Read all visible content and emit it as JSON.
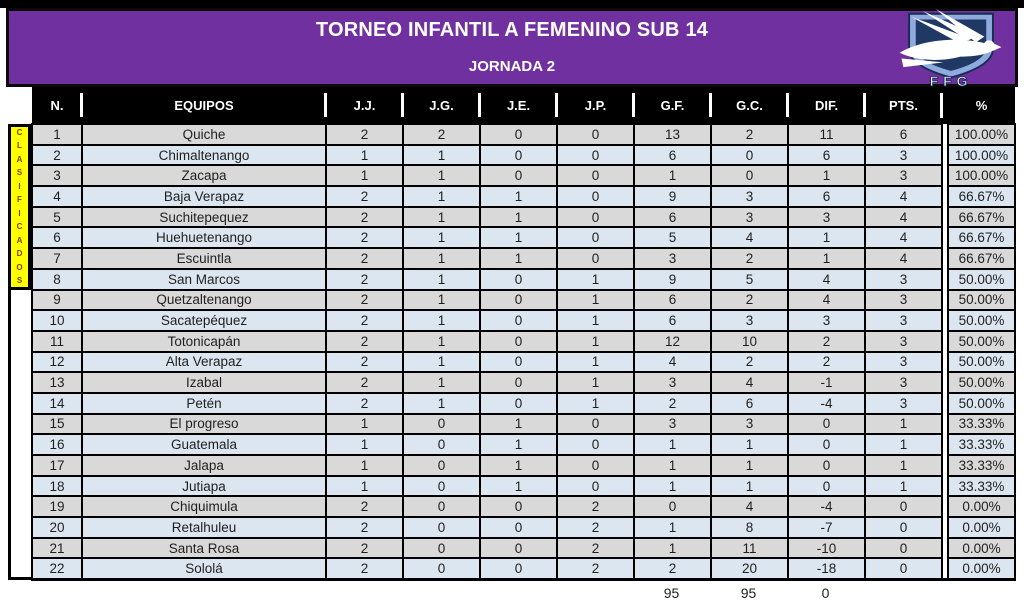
{
  "banner": {
    "title": "TORNEO INFANTIL A FEMENINO SUB 14",
    "subtitle": "JORNADA 2",
    "logo_text": "FFG"
  },
  "clasificados": {
    "text": "CLASIFICADOS",
    "rows_covered": 8
  },
  "table": {
    "columns": [
      "N.",
      "EQUIPOS",
      "J.J.",
      "J.G.",
      "J.E.",
      "J.P.",
      "G.F.",
      "G.C.",
      "DIF.",
      "PTS.",
      "%"
    ],
    "rows": [
      [
        "1",
        "Quiche",
        "2",
        "2",
        "0",
        "0",
        "13",
        "2",
        "11",
        "6",
        "100.00%"
      ],
      [
        "2",
        "Chimaltenango",
        "1",
        "1",
        "0",
        "0",
        "6",
        "0",
        "6",
        "3",
        "100.00%"
      ],
      [
        "3",
        "Zacapa",
        "1",
        "1",
        "0",
        "0",
        "1",
        "0",
        "1",
        "3",
        "100.00%"
      ],
      [
        "4",
        "Baja Verapaz",
        "2",
        "1",
        "1",
        "0",
        "9",
        "3",
        "6",
        "4",
        "66.67%"
      ],
      [
        "5",
        "Suchitepequez",
        "2",
        "1",
        "1",
        "0",
        "6",
        "3",
        "3",
        "4",
        "66.67%"
      ],
      [
        "6",
        "Huehuetenango",
        "2",
        "1",
        "1",
        "0",
        "5",
        "4",
        "1",
        "4",
        "66.67%"
      ],
      [
        "7",
        "Escuintla",
        "2",
        "1",
        "1",
        "0",
        "3",
        "2",
        "1",
        "4",
        "66.67%"
      ],
      [
        "8",
        "San Marcos",
        "2",
        "1",
        "0",
        "1",
        "9",
        "5",
        "4",
        "3",
        "50.00%"
      ],
      [
        "9",
        "Quetzaltenango",
        "2",
        "1",
        "0",
        "1",
        "6",
        "2",
        "4",
        "3",
        "50.00%"
      ],
      [
        "10",
        "Sacatepéquez",
        "2",
        "1",
        "0",
        "1",
        "6",
        "3",
        "3",
        "3",
        "50.00%"
      ],
      [
        "11",
        "Totonicapán",
        "2",
        "1",
        "0",
        "1",
        "12",
        "10",
        "2",
        "3",
        "50.00%"
      ],
      [
        "12",
        "Alta Verapaz",
        "2",
        "1",
        "0",
        "1",
        "4",
        "2",
        "2",
        "3",
        "50.00%"
      ],
      [
        "13",
        "Izabal",
        "2",
        "1",
        "0",
        "1",
        "3",
        "4",
        "-1",
        "3",
        "50.00%"
      ],
      [
        "14",
        "Petén",
        "2",
        "1",
        "0",
        "1",
        "2",
        "6",
        "-4",
        "3",
        "50.00%"
      ],
      [
        "15",
        "El progreso",
        "1",
        "0",
        "1",
        "0",
        "3",
        "3",
        "0",
        "1",
        "33.33%"
      ],
      [
        "16",
        "Guatemala",
        "1",
        "0",
        "1",
        "0",
        "1",
        "1",
        "0",
        "1",
        "33.33%"
      ],
      [
        "17",
        "Jalapa",
        "1",
        "0",
        "1",
        "0",
        "1",
        "1",
        "0",
        "1",
        "33.33%"
      ],
      [
        "18",
        "Jutiapa",
        "1",
        "0",
        "1",
        "0",
        "1",
        "1",
        "0",
        "1",
        "33.33%"
      ],
      [
        "19",
        "Chiquimula",
        "2",
        "0",
        "0",
        "2",
        "0",
        "4",
        "-4",
        "0",
        "0.00%"
      ],
      [
        "20",
        "Retalhuleu",
        "2",
        "0",
        "0",
        "2",
        "1",
        "8",
        "-7",
        "0",
        "0.00%"
      ],
      [
        "21",
        "Santa Rosa",
        "2",
        "0",
        "0",
        "2",
        "1",
        "11",
        "-10",
        "0",
        "0.00%"
      ],
      [
        "22",
        "Sololá",
        "2",
        "0",
        "0",
        "2",
        "2",
        "20",
        "-18",
        "0",
        "0.00%"
      ]
    ],
    "totals": {
      "gf": "95",
      "gc": "95",
      "dif": "0"
    }
  },
  "colors": {
    "banner_purple": "#7030a0",
    "header_black": "#000000",
    "row_gray": "#d9d9d9",
    "row_blue": "#dce6f1",
    "clasificados_yellow": "#ffff00",
    "clasificados_letters": "#833c00",
    "shield_light_blue": "#8faadc",
    "shield_navy": "#1f3864"
  }
}
